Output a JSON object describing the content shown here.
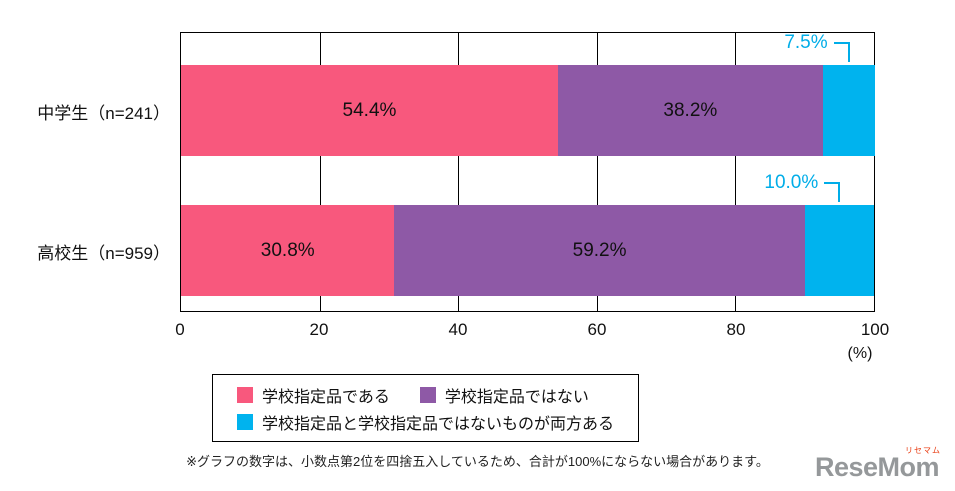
{
  "chart_data": {
    "type": "bar",
    "orientation": "horizontal",
    "stacked": true,
    "grid": true,
    "xlim": [
      0,
      100
    ],
    "x_ticks": [
      0,
      20,
      40,
      60,
      80,
      100
    ],
    "unit_label": "(%)",
    "categories": [
      "中学生（n=241）",
      "高校生（n=959）"
    ],
    "series": [
      {
        "name": "学校指定品である",
        "color": "#f8587d",
        "values": [
          54.4,
          30.8
        ],
        "label_position": "inside"
      },
      {
        "name": "学校指定品ではない",
        "color": "#8e59a6",
        "values": [
          38.2,
          59.2
        ],
        "label_position": "inside"
      },
      {
        "name": "学校指定品と学校指定品ではないものが両方ある",
        "color": "#00b3ee",
        "values": [
          7.5,
          10.0
        ],
        "label_position": "callout"
      }
    ],
    "legend_position": "bottom"
  },
  "legend": {
    "items": [
      {
        "label": "学校指定品である",
        "color": "#f8587d"
      },
      {
        "label": "学校指定品ではない",
        "color": "#8e59a6"
      },
      {
        "label": "学校指定品と学校指定品ではないものが両方ある",
        "color": "#00b3ee"
      }
    ]
  },
  "footnote": "※グラフの数字は、小数点第2位を四捨五入しているため、合計が100%にならない場合があります。",
  "logo": {
    "text": "ReseMom",
    "ruby": "リセマム"
  }
}
